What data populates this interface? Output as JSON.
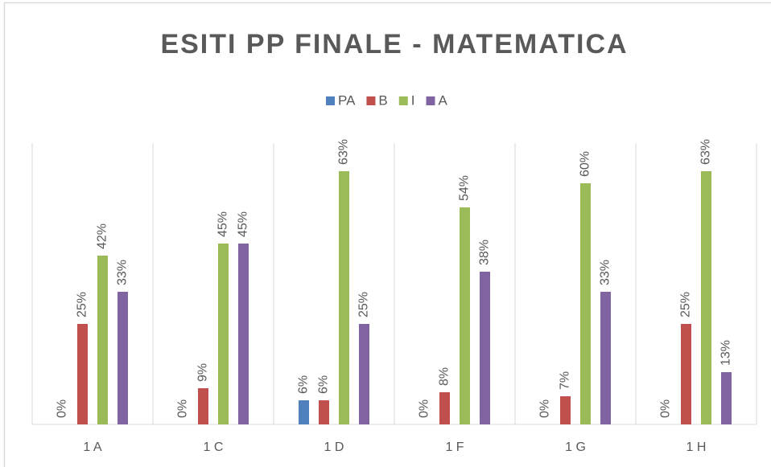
{
  "chart_data": {
    "type": "bar",
    "title": "ESITI PP FINALE - MATEMATICA",
    "categories": [
      "1 A",
      "1 C",
      "1 D",
      "1 F",
      "1 G",
      "1 H"
    ],
    "series": [
      {
        "name": "PA",
        "color": "#4f81bd",
        "values": [
          0,
          0,
          6,
          0,
          0,
          0
        ],
        "value_labels": [
          "0%",
          "0%",
          "6%",
          "0%",
          "0%",
          "0%"
        ]
      },
      {
        "name": "B",
        "color": "#c0504d",
        "values": [
          25,
          9,
          6,
          8,
          7,
          25
        ],
        "value_labels": [
          "25%",
          "9%",
          "6%",
          "8%",
          "7%",
          "25%"
        ]
      },
      {
        "name": "I",
        "color": "#9bbb59",
        "values": [
          42,
          45,
          63,
          54,
          60,
          63
        ],
        "value_labels": [
          "42%",
          "45%",
          "63%",
          "54%",
          "60%",
          "63%"
        ]
      },
      {
        "name": "A",
        "color": "#8064a2",
        "values": [
          33,
          45,
          25,
          38,
          33,
          13
        ],
        "value_labels": [
          "33%",
          "45%",
          "25%",
          "38%",
          "33%",
          "13%"
        ]
      }
    ],
    "ylim": [
      0,
      70
    ],
    "legend": "top"
  }
}
